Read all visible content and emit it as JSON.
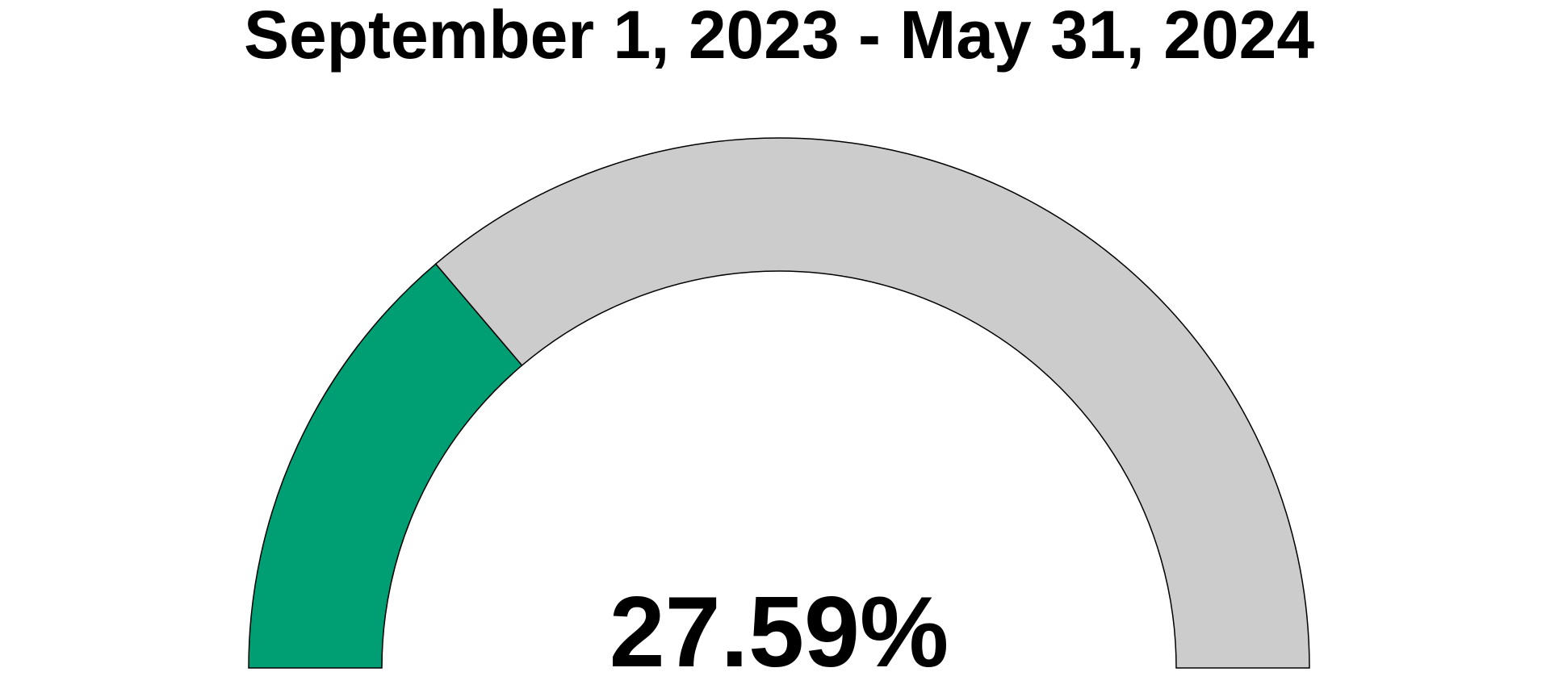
{
  "chart_data": {
    "type": "gauge",
    "title": "September 1, 2023 - May 31, 2024",
    "value_label": "27.59%",
    "value": 27.59,
    "min": 0,
    "max": 100,
    "colors": {
      "filled": "#009E73",
      "remaining": "#CCCCCC",
      "outline": "#000000"
    }
  }
}
